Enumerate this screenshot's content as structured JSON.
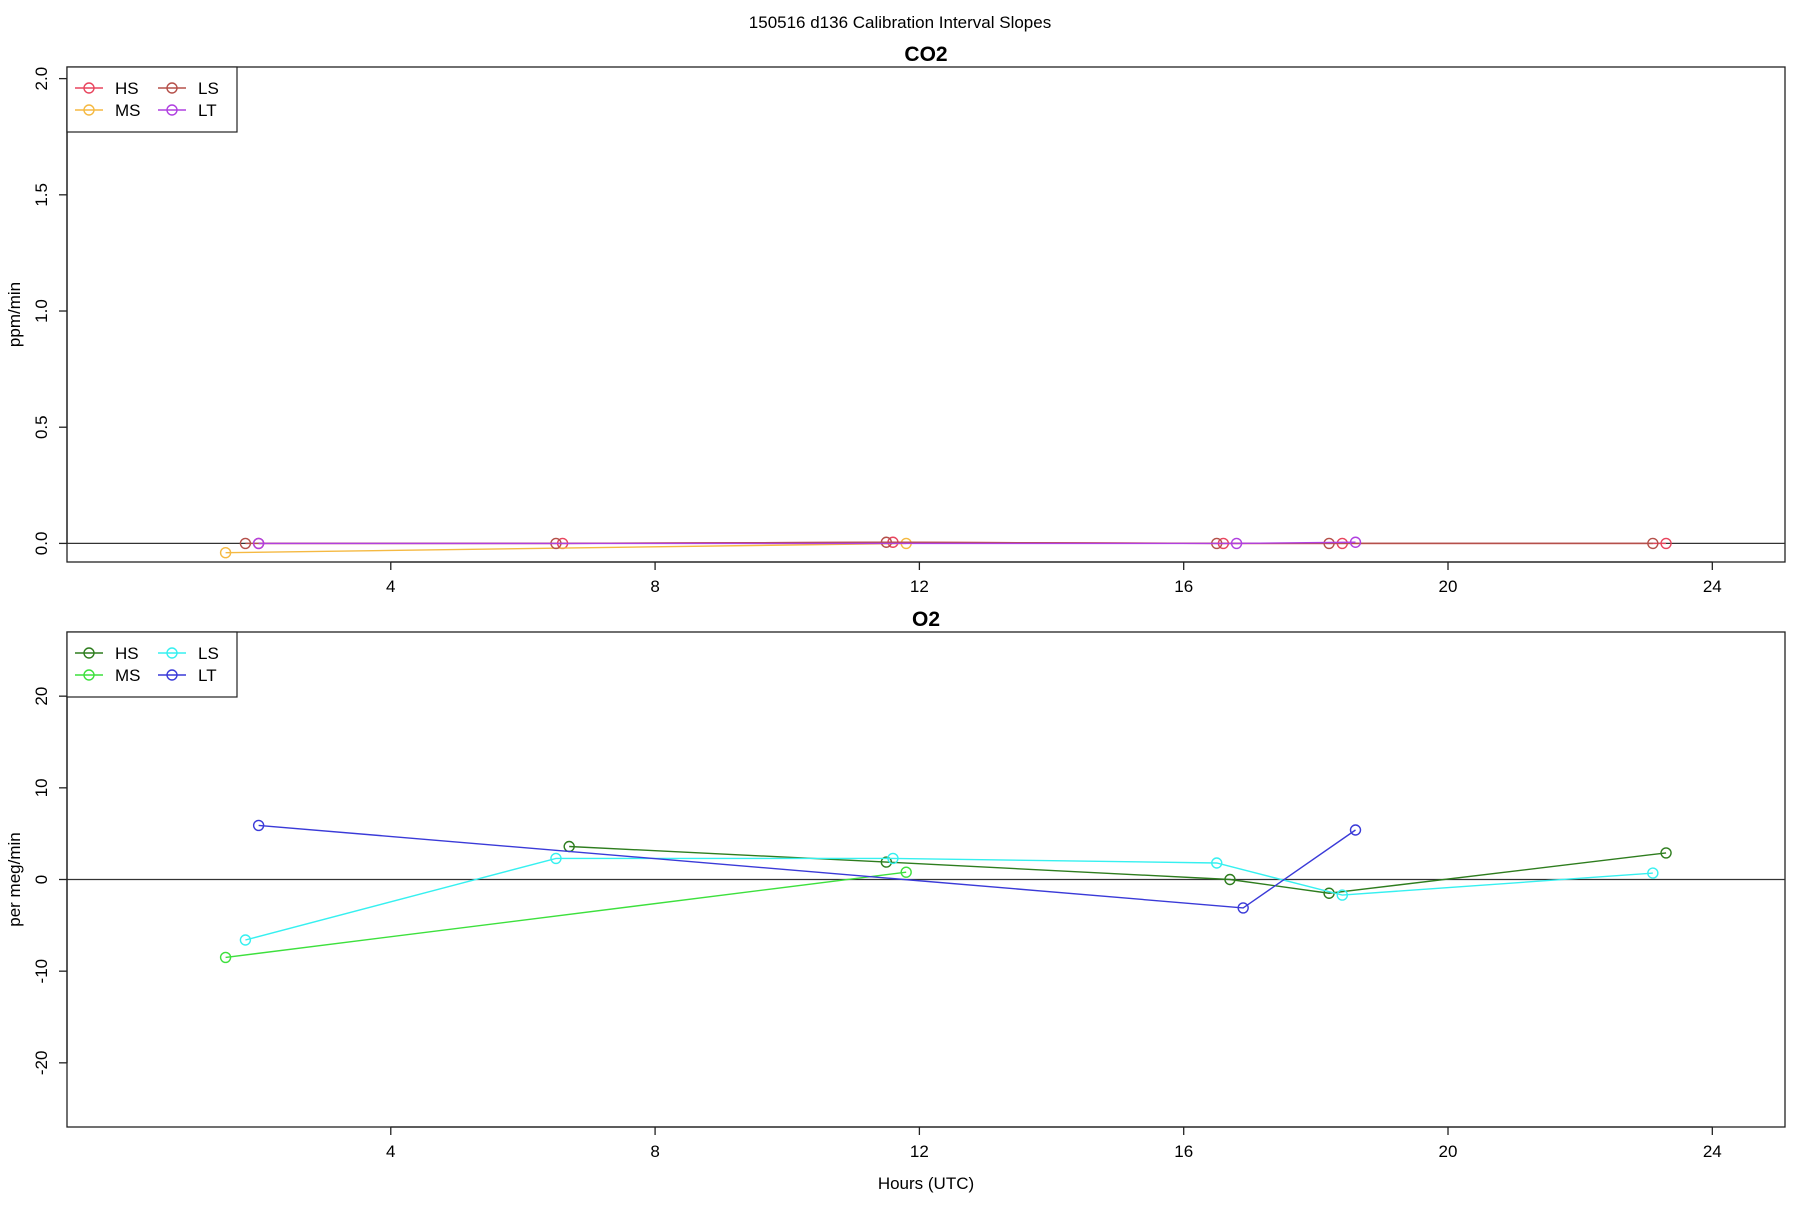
{
  "suptitle": "150516   d136   Calibration Interval Slopes",
  "chart_data": [
    {
      "type": "line",
      "title": "CO2",
      "xlabel": "",
      "ylabel": "ppm/min",
      "xlim": [
        -0.9,
        25.1
      ],
      "ylim": [
        -0.08,
        2.05
      ],
      "xticks": [
        4,
        8,
        12,
        16,
        20,
        24
      ],
      "yticks": [
        0.0,
        0.5,
        1.0,
        1.5,
        2.0
      ],
      "reference_line_y": 0,
      "legend": {
        "placement": "top-left",
        "columns": 2
      },
      "series": [
        {
          "name": "HS",
          "color": "#e8455e",
          "x": [
            2.0,
            6.6,
            11.6,
            16.6,
            18.4,
            23.3
          ],
          "y": [
            0.0,
            0.0,
            0.005,
            0.0,
            0.0,
            0.0
          ]
        },
        {
          "name": "MS",
          "color": "#f5b942",
          "x": [
            1.5,
            11.8
          ],
          "y": [
            -0.04,
            0.0
          ]
        },
        {
          "name": "LS",
          "color": "#b5504a",
          "x": [
            1.8,
            6.5,
            11.5,
            16.5,
            18.2,
            23.1
          ],
          "y": [
            0.0,
            0.0,
            0.005,
            0.0,
            0.0,
            0.0
          ]
        },
        {
          "name": "LT",
          "color": "#b040e0",
          "x": [
            2.0,
            16.8,
            18.6
          ],
          "y": [
            0.0,
            0.0,
            0.005
          ]
        }
      ]
    },
    {
      "type": "line",
      "title": "O2",
      "xlabel": "Hours (UTC)",
      "ylabel": "per meg/min",
      "xlim": [
        -0.9,
        25.1
      ],
      "ylim": [
        -27,
        27
      ],
      "xticks": [
        4,
        8,
        12,
        16,
        20,
        24
      ],
      "yticks": [
        -20,
        -10,
        0,
        10,
        20
      ],
      "reference_line_y": 0,
      "legend": {
        "placement": "top-left",
        "columns": 2
      },
      "series": [
        {
          "name": "HS",
          "color": "#2e7d1e",
          "x": [
            6.7,
            11.5,
            16.7,
            18.2,
            23.3
          ],
          "y": [
            3.6,
            1.9,
            0.0,
            -1.5,
            2.9
          ]
        },
        {
          "name": "MS",
          "color": "#3de03d",
          "x": [
            1.5,
            11.8
          ],
          "y": [
            -8.5,
            0.8
          ]
        },
        {
          "name": "LS",
          "color": "#36f0f0",
          "x": [
            1.8,
            6.5,
            11.6,
            16.5,
            18.4,
            23.1
          ],
          "y": [
            -6.6,
            2.3,
            2.3,
            1.8,
            -1.7,
            0.7
          ]
        },
        {
          "name": "LT",
          "color": "#3a3ad8",
          "x": [
            2.0,
            16.9,
            18.6
          ],
          "y": [
            5.9,
            -3.1,
            5.4
          ]
        }
      ]
    }
  ]
}
